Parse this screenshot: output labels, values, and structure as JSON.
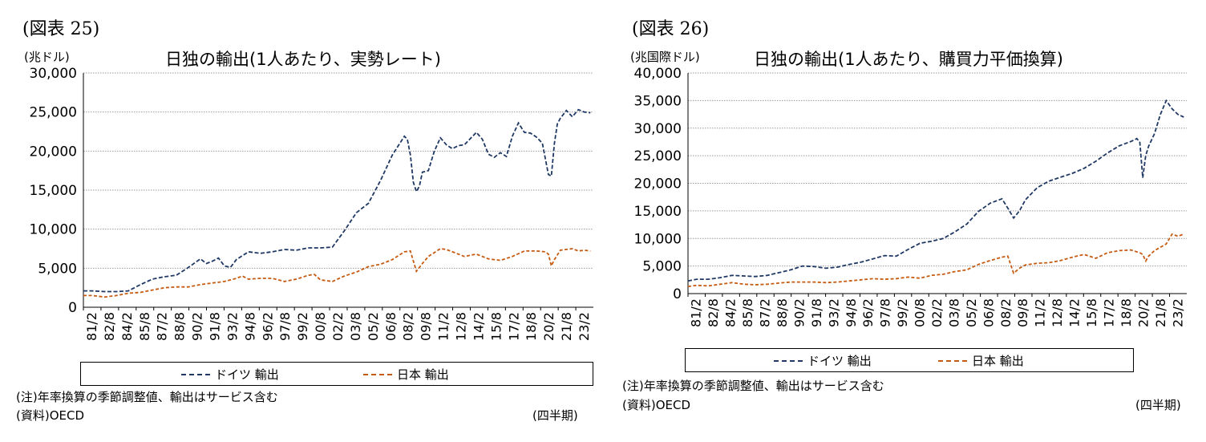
{
  "panels": [
    {
      "figure_label": "(図表 25)",
      "note": "(注)年率換算の季節調整値、輸出はサービス含む",
      "source": "(資料)OECD",
      "period_label": "(四半期)",
      "chart_data": {
        "type": "line",
        "title": "日独の輸出(1人あたり、実勢レート)",
        "ylabel": "(兆ドル)",
        "xlabel": "",
        "ylim": [
          0,
          30000
        ],
        "yticks": [
          0,
          5000,
          10000,
          15000,
          20000,
          25000,
          30000
        ],
        "ytick_labels": [
          "0",
          "5,000",
          "10,000",
          "15,000",
          "20,000",
          "25,000",
          "30,000"
        ],
        "x_range": [
          1981.25,
          2023.75
        ],
        "xtick_labels": [
          "81/2",
          "82/8",
          "84/2",
          "85/8",
          "87/2",
          "88/8",
          "90/2",
          "91/8",
          "93/2",
          "94/8",
          "96/2",
          "97/8",
          "99/2",
          "00/8",
          "02/2",
          "03/8",
          "05/2",
          "06/8",
          "08/2",
          "09/8",
          "11/2",
          "12/8",
          "14/2",
          "15/8",
          "17/2",
          "18/8",
          "20/2",
          "21/8",
          "23/2"
        ],
        "grid": true,
        "legend_position": "bottom",
        "series": [
          {
            "name": "ドイツ 輸出",
            "color": "#1f3864",
            "x": [
              1981.25,
              1982,
              1983,
              1984,
              1985,
              1986,
              1987,
              1988,
              1989,
              1990,
              1991,
              1991.5,
              1992,
              1992.5,
              1993,
              1993.5,
              1994,
              1995,
              1996,
              1997,
              1998,
              1999,
              2000,
              2001,
              2002,
              2003,
              2004,
              2005,
              2006,
              2007,
              2008,
              2008.25,
              2008.5,
              2008.75,
              2009,
              2009.25,
              2009.5,
              2010,
              2010.5,
              2011,
              2011.5,
              2012,
              2012.5,
              2013,
              2014,
              2014.5,
              2015,
              2015.5,
              2016,
              2016.5,
              2017,
              2017.5,
              2018,
              2018.5,
              2019,
              2019.5,
              2020,
              2020.25,
              2020.5,
              2020.75,
              2021,
              2021.5,
              2022,
              2022.5,
              2023,
              2023.5
            ],
            "values": [
              2100,
              2100,
              2000,
              2000,
              2100,
              2900,
              3600,
              3900,
              4100,
              5100,
              6200,
              5600,
              5900,
              6300,
              5300,
              5100,
              6100,
              7100,
              6900,
              7100,
              7400,
              7300,
              7600,
              7600,
              7700,
              9800,
              12100,
              13300,
              16200,
              19500,
              21900,
              21500,
              19500,
              16000,
              14800,
              15500,
              17300,
              17500,
              20000,
              21700,
              20800,
              20300,
              20700,
              20800,
              22400,
              21500,
              19600,
              19200,
              19800,
              19300,
              21900,
              23600,
              22400,
              22300,
              21800,
              21000,
              17000,
              16800,
              21000,
              23500,
              24200,
              25200,
              24400,
              25300,
              25000,
              24900
            ]
          },
          {
            "name": "日本 輸出",
            "color": "#c55a11",
            "x": [
              1981.25,
              1982,
              1983,
              1984,
              1985,
              1986,
              1987,
              1988,
              1989,
              1990,
              1991,
              1992,
              1993,
              1994,
              1994.5,
              1995,
              1996,
              1997,
              1998,
              1999,
              2000,
              2000.5,
              2001,
              2002,
              2003,
              2004,
              2005,
              2006,
              2007,
              2008,
              2008.5,
              2009,
              2009.5,
              2010,
              2011,
              2011.5,
              2012,
              2013,
              2014,
              2015,
              2016,
              2017,
              2018,
              2019,
              2019.75,
              2020,
              2020.25,
              2020.5,
              2021,
              2022,
              2022.5,
              2023,
              2023.5
            ],
            "values": [
              1500,
              1500,
              1300,
              1500,
              1800,
              1900,
              2200,
              2500,
              2600,
              2600,
              2900,
              3100,
              3300,
              3700,
              4000,
              3600,
              3700,
              3700,
              3300,
              3600,
              4100,
              4200,
              3500,
              3300,
              4000,
              4500,
              5200,
              5500,
              6100,
              7100,
              7200,
              4600,
              5600,
              6500,
              7500,
              7400,
              7100,
              6500,
              6800,
              6200,
              6000,
              6500,
              7200,
              7200,
              7100,
              6800,
              5300,
              6100,
              7300,
              7500,
              7200,
              7300,
              7200
            ]
          }
        ]
      }
    },
    {
      "figure_label": "(図表 26)",
      "note": "(注)年率換算の季節調整値、輸出はサービス含む",
      "source": "(資料)OECD",
      "period_label": "(四半期)",
      "chart_data": {
        "type": "line",
        "title": "日独の輸出(1人あたり、購買力平価換算)",
        "ylabel": "(兆国際ドル)",
        "xlabel": "",
        "ylim": [
          0,
          40000
        ],
        "yticks": [
          0,
          5000,
          10000,
          15000,
          20000,
          25000,
          30000,
          35000,
          40000
        ],
        "ytick_labels": [
          "0",
          "5,000",
          "10,000",
          "15,000",
          "20,000",
          "25,000",
          "30,000",
          "35,000",
          "40,000"
        ],
        "x_range": [
          1981.25,
          2023.75
        ],
        "xtick_labels": [
          "81/2",
          "82/8",
          "84/2",
          "85/8",
          "87/2",
          "88/8",
          "90/2",
          "91/8",
          "93/2",
          "94/8",
          "96/2",
          "97/8",
          "99/2",
          "00/8",
          "02/2",
          "03/8",
          "05/2",
          "06/8",
          "08/2",
          "09/8",
          "11/2",
          "12/8",
          "14/2",
          "15/8",
          "17/2",
          "18/8",
          "20/2",
          "21/8",
          "23/2"
        ],
        "grid": true,
        "legend_position": "bottom",
        "series": [
          {
            "name": "ドイツ 輸出",
            "color": "#1f3864",
            "x": [
              1981.25,
              1982,
              1983,
              1984,
              1985,
              1986,
              1987,
              1988,
              1989,
              1990,
              1991,
              1992,
              1993,
              1994,
              1995,
              1996,
              1997,
              1998,
              1999,
              2000,
              2001,
              2002,
              2003,
              2004,
              2005,
              2006,
              2007,
              2008,
              2008.5,
              2009,
              2009.5,
              2010,
              2011,
              2012,
              2013,
              2014,
              2015,
              2016,
              2017,
              2018,
              2019,
              2019.5,
              2019.75,
              2020,
              2020.25,
              2020.5,
              2021,
              2021.5,
              2022,
              2022.5,
              2023,
              2023.5
            ],
            "values": [
              2300,
              2600,
              2600,
              2900,
              3300,
              3200,
              3100,
              3300,
              3800,
              4300,
              5000,
              4900,
              4600,
              4800,
              5300,
              5700,
              6300,
              6900,
              6800,
              8000,
              9100,
              9500,
              10000,
              11200,
              12600,
              14900,
              16400,
              17200,
              15500,
              13700,
              15000,
              17000,
              19200,
              20400,
              21100,
              21800,
              22700,
              24000,
              25500,
              26800,
              27600,
              28100,
              27400,
              21000,
              25000,
              26700,
              29000,
              32500,
              35000,
              33500,
              32500,
              32000
            ]
          },
          {
            "name": "日本 輸出",
            "color": "#c55a11",
            "x": [
              1981.25,
              1982,
              1983,
              1984,
              1985,
              1986,
              1987,
              1988,
              1989,
              1990,
              1991,
              1992,
              1993,
              1994,
              1995,
              1996,
              1997,
              1998,
              1999,
              2000,
              2001,
              2002,
              2003,
              2004,
              2005,
              2006,
              2007,
              2008,
              2008.5,
              2009,
              2009.5,
              2010,
              2011,
              2012,
              2013,
              2014,
              2015,
              2016,
              2017,
              2018,
              2019,
              2019.75,
              2020,
              2020.25,
              2020.5,
              2021,
              2022,
              2022.5,
              2023,
              2023.5
            ],
            "values": [
              1300,
              1500,
              1400,
              1700,
              2000,
              1700,
              1600,
              1700,
              1900,
              2100,
              2100,
              2100,
              2000,
              2100,
              2300,
              2500,
              2700,
              2600,
              2700,
              3000,
              2800,
              3300,
              3500,
              4000,
              4300,
              5300,
              6000,
              6600,
              6800,
              3700,
              4600,
              5200,
              5500,
              5600,
              6000,
              6600,
              7100,
              6400,
              7400,
              7800,
              7900,
              7400,
              7100,
              5900,
              6800,
              7800,
              9000,
              10800,
              10400,
              10800
            ]
          }
        ]
      }
    }
  ]
}
